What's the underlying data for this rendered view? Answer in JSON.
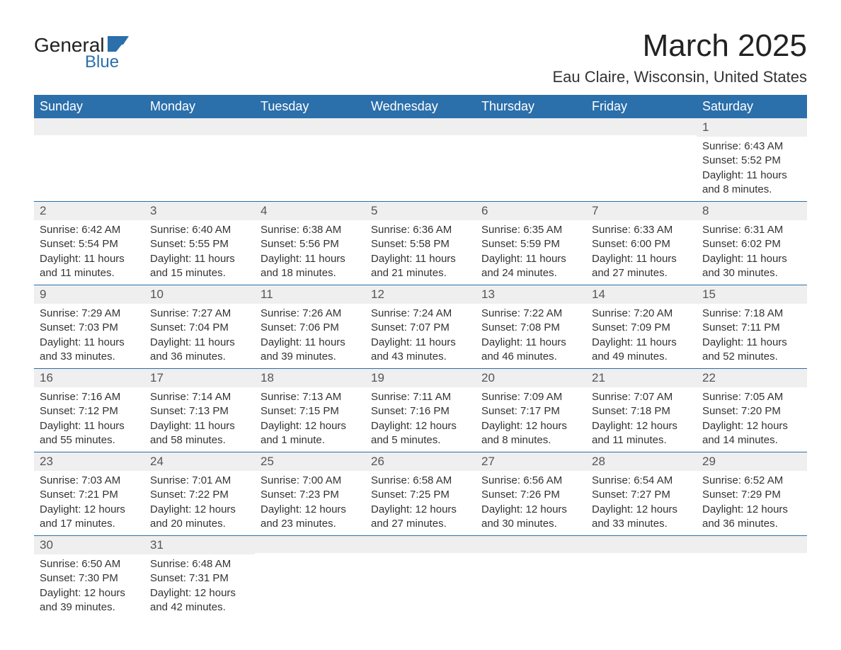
{
  "logo": {
    "general": "General",
    "blue": "Blue"
  },
  "title": "March 2025",
  "location": "Eau Claire, Wisconsin, United States",
  "colors": {
    "header_bg": "#2b6fab",
    "header_fg": "#ffffff",
    "daynum_bg": "#efefef",
    "row_border": "#2b6fab",
    "text": "#333333",
    "logo_blue": "#2b6fab"
  },
  "weekdays": [
    "Sunday",
    "Monday",
    "Tuesday",
    "Wednesday",
    "Thursday",
    "Friday",
    "Saturday"
  ],
  "first_weekday_index": 6,
  "days_in_month": 31,
  "days": {
    "1": {
      "sunrise": "6:43 AM",
      "sunset": "5:52 PM",
      "daylight": "11 hours and 8 minutes."
    },
    "2": {
      "sunrise": "6:42 AM",
      "sunset": "5:54 PM",
      "daylight": "11 hours and 11 minutes."
    },
    "3": {
      "sunrise": "6:40 AM",
      "sunset": "5:55 PM",
      "daylight": "11 hours and 15 minutes."
    },
    "4": {
      "sunrise": "6:38 AM",
      "sunset": "5:56 PM",
      "daylight": "11 hours and 18 minutes."
    },
    "5": {
      "sunrise": "6:36 AM",
      "sunset": "5:58 PM",
      "daylight": "11 hours and 21 minutes."
    },
    "6": {
      "sunrise": "6:35 AM",
      "sunset": "5:59 PM",
      "daylight": "11 hours and 24 minutes."
    },
    "7": {
      "sunrise": "6:33 AM",
      "sunset": "6:00 PM",
      "daylight": "11 hours and 27 minutes."
    },
    "8": {
      "sunrise": "6:31 AM",
      "sunset": "6:02 PM",
      "daylight": "11 hours and 30 minutes."
    },
    "9": {
      "sunrise": "7:29 AM",
      "sunset": "7:03 PM",
      "daylight": "11 hours and 33 minutes."
    },
    "10": {
      "sunrise": "7:27 AM",
      "sunset": "7:04 PM",
      "daylight": "11 hours and 36 minutes."
    },
    "11": {
      "sunrise": "7:26 AM",
      "sunset": "7:06 PM",
      "daylight": "11 hours and 39 minutes."
    },
    "12": {
      "sunrise": "7:24 AM",
      "sunset": "7:07 PM",
      "daylight": "11 hours and 43 minutes."
    },
    "13": {
      "sunrise": "7:22 AM",
      "sunset": "7:08 PM",
      "daylight": "11 hours and 46 minutes."
    },
    "14": {
      "sunrise": "7:20 AM",
      "sunset": "7:09 PM",
      "daylight": "11 hours and 49 minutes."
    },
    "15": {
      "sunrise": "7:18 AM",
      "sunset": "7:11 PM",
      "daylight": "11 hours and 52 minutes."
    },
    "16": {
      "sunrise": "7:16 AM",
      "sunset": "7:12 PM",
      "daylight": "11 hours and 55 minutes."
    },
    "17": {
      "sunrise": "7:14 AM",
      "sunset": "7:13 PM",
      "daylight": "11 hours and 58 minutes."
    },
    "18": {
      "sunrise": "7:13 AM",
      "sunset": "7:15 PM",
      "daylight": "12 hours and 1 minute."
    },
    "19": {
      "sunrise": "7:11 AM",
      "sunset": "7:16 PM",
      "daylight": "12 hours and 5 minutes."
    },
    "20": {
      "sunrise": "7:09 AM",
      "sunset": "7:17 PM",
      "daylight": "12 hours and 8 minutes."
    },
    "21": {
      "sunrise": "7:07 AM",
      "sunset": "7:18 PM",
      "daylight": "12 hours and 11 minutes."
    },
    "22": {
      "sunrise": "7:05 AM",
      "sunset": "7:20 PM",
      "daylight": "12 hours and 14 minutes."
    },
    "23": {
      "sunrise": "7:03 AM",
      "sunset": "7:21 PM",
      "daylight": "12 hours and 17 minutes."
    },
    "24": {
      "sunrise": "7:01 AM",
      "sunset": "7:22 PM",
      "daylight": "12 hours and 20 minutes."
    },
    "25": {
      "sunrise": "7:00 AM",
      "sunset": "7:23 PM",
      "daylight": "12 hours and 23 minutes."
    },
    "26": {
      "sunrise": "6:58 AM",
      "sunset": "7:25 PM",
      "daylight": "12 hours and 27 minutes."
    },
    "27": {
      "sunrise": "6:56 AM",
      "sunset": "7:26 PM",
      "daylight": "12 hours and 30 minutes."
    },
    "28": {
      "sunrise": "6:54 AM",
      "sunset": "7:27 PM",
      "daylight": "12 hours and 33 minutes."
    },
    "29": {
      "sunrise": "6:52 AM",
      "sunset": "7:29 PM",
      "daylight": "12 hours and 36 minutes."
    },
    "30": {
      "sunrise": "6:50 AM",
      "sunset": "7:30 PM",
      "daylight": "12 hours and 39 minutes."
    },
    "31": {
      "sunrise": "6:48 AM",
      "sunset": "7:31 PM",
      "daylight": "12 hours and 42 minutes."
    }
  },
  "labels": {
    "sunrise": "Sunrise:",
    "sunset": "Sunset:",
    "daylight": "Daylight:"
  }
}
